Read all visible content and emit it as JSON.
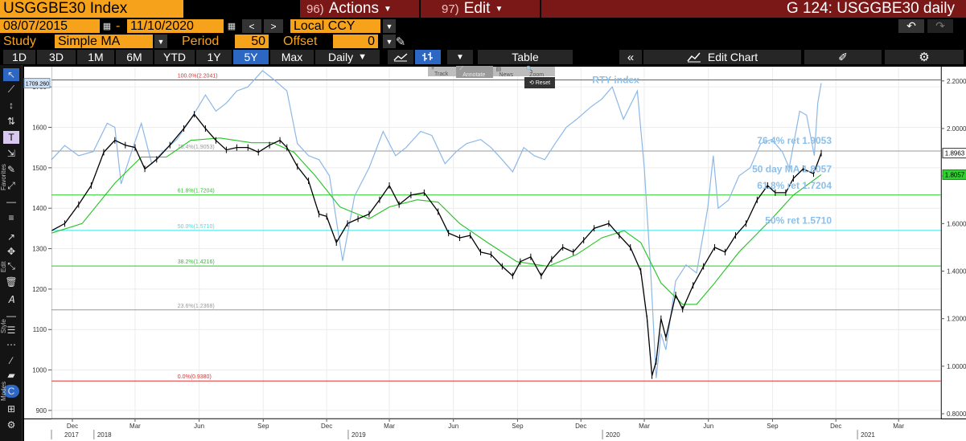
{
  "header": {
    "ticker": "USGGBE30 Index",
    "actions_num": "96)",
    "actions_label": "Actions",
    "edit_num": "97)",
    "edit_label": "Edit",
    "title": "G 124: USGGBE30 daily"
  },
  "range": {
    "start_date": "08/07/2015",
    "separator": "-",
    "end_date": "11/10/2020",
    "currency": "Local CCY"
  },
  "study": {
    "label": "Study",
    "value": "Simple MA",
    "period_label": "Period",
    "period_value": "50",
    "offset_label": "Offset",
    "offset_value": "0"
  },
  "toolbar": {
    "periods": [
      "1D",
      "3D",
      "1M",
      "6M",
      "YTD",
      "1Y",
      "5Y",
      "Max"
    ],
    "selected_period": "5Y",
    "frequency": "Daily",
    "table_label": "Table",
    "edit_chart_label": "Edit Chart"
  },
  "overlay": {
    "items": [
      "Track",
      "Annotate",
      "News",
      "Zoom"
    ],
    "reset": "Reset"
  },
  "sidebar": {
    "favorites": "Favorites",
    "edit": "Edit",
    "style": "Style",
    "modes": "Modes"
  },
  "colors": {
    "price": "#000000",
    "ma": "#22c322",
    "rty": "#8db8e6",
    "fib_top": "#e03030",
    "fib_mid": "#22cc22",
    "fib_50": "#2ee6e6",
    "fib_gray": "#999999",
    "annotation": "#8cc0ea",
    "toolbar_orange": "#f7a21b",
    "toolbar_maroon": "#7a1717"
  },
  "chart_data": {
    "type": "line",
    "left_axis_ticks": [
      "900",
      "1000",
      "1100",
      "1200",
      "1300",
      "1400",
      "1500",
      "1600",
      "1700"
    ],
    "right_axis_ticks": [
      "0.8000",
      "1.0000",
      "1.2000",
      "1.4000",
      "1.6000",
      "1.8000",
      "2.0000",
      "2.2000"
    ],
    "month_ticks": [
      {
        "date": "2017-12-01",
        "label": "Dec"
      },
      {
        "date": "2018-03-01",
        "label": "Mar"
      },
      {
        "date": "2018-06-01",
        "label": "Jun"
      },
      {
        "date": "2018-09-01",
        "label": "Sep"
      },
      {
        "date": "2018-12-01",
        "label": "Dec"
      },
      {
        "date": "2019-03-01",
        "label": "Mar"
      },
      {
        "date": "2019-06-01",
        "label": "Jun"
      },
      {
        "date": "2019-09-01",
        "label": "Sep"
      },
      {
        "date": "2019-12-01",
        "label": "Dec"
      },
      {
        "date": "2020-03-01",
        "label": "Mar"
      },
      {
        "date": "2020-06-01",
        "label": "Jun"
      },
      {
        "date": "2020-09-01",
        "label": "Sep"
      },
      {
        "date": "2020-12-01",
        "label": "Dec"
      },
      {
        "date": "2021-03-01",
        "label": "Mar"
      }
    ],
    "year_ticks": [
      {
        "date": "2017-10-01",
        "label": "2017"
      },
      {
        "date": "2018-01-01",
        "label": "2018"
      },
      {
        "date": "2019-01-01",
        "label": "2019"
      },
      {
        "date": "2020-01-01",
        "label": "2020"
      },
      {
        "date": "2021-01-01",
        "label": "2021"
      }
    ],
    "x_range": [
      "2017-11-01",
      "2021-05-01"
    ],
    "ylim_left": [
      880,
      1750
    ],
    "ylim_right": [
      0.78,
      2.26
    ],
    "fib_levels": [
      {
        "label": "100.0%(2.2041)",
        "value": 2.2041,
        "color": "#e03030"
      },
      {
        "label": "76.4%(1.9053)",
        "value": 1.9053,
        "color": "#999999"
      },
      {
        "label": "61.8%(1.7204)",
        "value": 1.7204,
        "color": "#22cc22"
      },
      {
        "label": "50.0%(1.5710)",
        "value": 1.571,
        "color": "#2ee6e6"
      },
      {
        "label": "38.2%(1.4216)",
        "value": 1.4216,
        "color": "#22cc22"
      },
      {
        "label": "23.6%(1.2368)",
        "value": 1.2368,
        "color": "#999999"
      },
      {
        "label": "0.0%(0.9380)",
        "value": 0.938,
        "color": "#e03030"
      }
    ],
    "annotations": [
      {
        "text": "RTY index",
        "date": "2020-01-20",
        "value": 2.19
      },
      {
        "text": "76.4% ret 1.9053",
        "date": "2020-11-25",
        "value": 1.935
      },
      {
        "text": "50 day MA 1.8057",
        "date": "2020-11-25",
        "value": 1.815
      },
      {
        "text": "61.8% ret 1.7204",
        "date": "2020-11-25",
        "value": 1.747
      },
      {
        "text": "50% ret 1.5710",
        "date": "2020-11-25",
        "value": 1.6
      }
    ],
    "tags": {
      "left_rty": "1709.260",
      "left_rty_value": 1709.26,
      "right_last": "1.8963",
      "right_last_value": 1.8963,
      "right_ma": "1.8057",
      "right_ma_value": 1.8057
    },
    "series": [
      {
        "name": "USGGBE30 Index",
        "axis": "right",
        "points": [
          [
            "2017-11-01",
            1.57
          ],
          [
            "2017-11-20",
            1.6
          ],
          [
            "2017-12-10",
            1.68
          ],
          [
            "2017-12-28",
            1.76
          ],
          [
            "2018-01-15",
            1.9
          ],
          [
            "2018-01-31",
            1.95
          ],
          [
            "2018-02-15",
            1.93
          ],
          [
            "2018-03-01",
            1.92
          ],
          [
            "2018-03-15",
            1.83
          ],
          [
            "2018-04-01",
            1.87
          ],
          [
            "2018-04-20",
            1.93
          ],
          [
            "2018-05-10",
            2.0
          ],
          [
            "2018-05-25",
            2.06
          ],
          [
            "2018-06-10",
            2.0
          ],
          [
            "2018-06-25",
            1.95
          ],
          [
            "2018-07-10",
            1.91
          ],
          [
            "2018-07-25",
            1.92
          ],
          [
            "2018-08-10",
            1.92
          ],
          [
            "2018-08-25",
            1.9
          ],
          [
            "2018-09-10",
            1.93
          ],
          [
            "2018-09-25",
            1.95
          ],
          [
            "2018-10-05",
            1.92
          ],
          [
            "2018-10-20",
            1.84
          ],
          [
            "2018-11-05",
            1.78
          ],
          [
            "2018-11-20",
            1.64
          ],
          [
            "2018-12-01",
            1.63
          ],
          [
            "2018-12-15",
            1.52
          ],
          [
            "2018-12-31",
            1.6
          ],
          [
            "2019-01-15",
            1.62
          ],
          [
            "2019-01-31",
            1.64
          ],
          [
            "2019-02-15",
            1.7
          ],
          [
            "2019-03-01",
            1.76
          ],
          [
            "2019-03-15",
            1.68
          ],
          [
            "2019-04-01",
            1.72
          ],
          [
            "2019-04-20",
            1.73
          ],
          [
            "2019-05-10",
            1.65
          ],
          [
            "2019-05-25",
            1.56
          ],
          [
            "2019-06-10",
            1.54
          ],
          [
            "2019-06-25",
            1.55
          ],
          [
            "2019-07-10",
            1.48
          ],
          [
            "2019-07-25",
            1.47
          ],
          [
            "2019-08-10",
            1.42
          ],
          [
            "2019-08-25",
            1.38
          ],
          [
            "2019-09-05",
            1.44
          ],
          [
            "2019-09-20",
            1.46
          ],
          [
            "2019-10-05",
            1.38
          ],
          [
            "2019-10-20",
            1.45
          ],
          [
            "2019-11-05",
            1.5
          ],
          [
            "2019-11-20",
            1.48
          ],
          [
            "2019-12-05",
            1.53
          ],
          [
            "2019-12-20",
            1.58
          ],
          [
            "2020-01-10",
            1.6
          ],
          [
            "2020-01-25",
            1.55
          ],
          [
            "2020-02-10",
            1.5
          ],
          [
            "2020-02-25",
            1.4
          ],
          [
            "2020-03-05",
            1.2
          ],
          [
            "2020-03-12",
            0.96
          ],
          [
            "2020-03-18",
            1.02
          ],
          [
            "2020-03-25",
            1.2
          ],
          [
            "2020-04-01",
            1.12
          ],
          [
            "2020-04-15",
            1.3
          ],
          [
            "2020-04-25",
            1.24
          ],
          [
            "2020-05-10",
            1.34
          ],
          [
            "2020-05-25",
            1.42
          ],
          [
            "2020-06-10",
            1.5
          ],
          [
            "2020-06-25",
            1.48
          ],
          [
            "2020-07-10",
            1.55
          ],
          [
            "2020-07-25",
            1.6
          ],
          [
            "2020-08-10",
            1.7
          ],
          [
            "2020-08-25",
            1.76
          ],
          [
            "2020-09-05",
            1.73
          ],
          [
            "2020-09-20",
            1.73
          ],
          [
            "2020-10-01",
            1.79
          ],
          [
            "2020-10-15",
            1.83
          ],
          [
            "2020-10-30",
            1.81
          ],
          [
            "2020-11-10",
            1.8963
          ]
        ]
      },
      {
        "name": "50 day MA",
        "axis": "right",
        "points": [
          [
            "2017-11-01",
            1.56
          ],
          [
            "2017-12-15",
            1.6
          ],
          [
            "2018-01-31",
            1.77
          ],
          [
            "2018-03-10",
            1.88
          ],
          [
            "2018-04-15",
            1.88
          ],
          [
            "2018-05-20",
            1.95
          ],
          [
            "2018-07-01",
            1.96
          ],
          [
            "2018-08-15",
            1.94
          ],
          [
            "2018-09-15",
            1.94
          ],
          [
            "2018-10-15",
            1.9
          ],
          [
            "2018-11-15",
            1.8
          ],
          [
            "2018-12-20",
            1.67
          ],
          [
            "2019-01-31",
            1.62
          ],
          [
            "2019-03-01",
            1.67
          ],
          [
            "2019-04-10",
            1.7
          ],
          [
            "2019-05-10",
            1.69
          ],
          [
            "2019-06-10",
            1.6
          ],
          [
            "2019-07-20",
            1.52
          ],
          [
            "2019-08-31",
            1.44
          ],
          [
            "2019-10-15",
            1.42
          ],
          [
            "2019-11-25",
            1.47
          ],
          [
            "2019-12-31",
            1.54
          ],
          [
            "2020-02-01",
            1.57
          ],
          [
            "2020-02-25",
            1.52
          ],
          [
            "2020-03-25",
            1.35
          ],
          [
            "2020-04-25",
            1.26
          ],
          [
            "2020-05-15",
            1.26
          ],
          [
            "2020-06-10",
            1.35
          ],
          [
            "2020-07-15",
            1.48
          ],
          [
            "2020-08-31",
            1.62
          ],
          [
            "2020-10-01",
            1.72
          ],
          [
            "2020-11-10",
            1.8057
          ]
        ]
      },
      {
        "name": "RTY index",
        "axis": "left",
        "points": [
          [
            "2017-11-01",
            1520
          ],
          [
            "2017-11-20",
            1555
          ],
          [
            "2017-12-10",
            1530
          ],
          [
            "2017-12-31",
            1540
          ],
          [
            "2018-01-20",
            1610
          ],
          [
            "2018-01-31",
            1600
          ],
          [
            "2018-02-09",
            1460
          ],
          [
            "2018-02-25",
            1545
          ],
          [
            "2018-03-10",
            1610
          ],
          [
            "2018-03-25",
            1510
          ],
          [
            "2018-04-10",
            1540
          ],
          [
            "2018-04-30",
            1570
          ],
          [
            "2018-05-20",
            1620
          ],
          [
            "2018-06-10",
            1680
          ],
          [
            "2018-06-25",
            1640
          ],
          [
            "2018-07-10",
            1660
          ],
          [
            "2018-07-25",
            1690
          ],
          [
            "2018-08-10",
            1700
          ],
          [
            "2018-08-31",
            1740
          ],
          [
            "2018-09-15",
            1720
          ],
          [
            "2018-10-05",
            1690
          ],
          [
            "2018-10-20",
            1560
          ],
          [
            "2018-11-05",
            1530
          ],
          [
            "2018-11-20",
            1520
          ],
          [
            "2018-12-05",
            1480
          ],
          [
            "2018-12-24",
            1270
          ],
          [
            "2019-01-10",
            1430
          ],
          [
            "2019-01-31",
            1500
          ],
          [
            "2019-02-20",
            1590
          ],
          [
            "2019-03-10",
            1530
          ],
          [
            "2019-03-25",
            1550
          ],
          [
            "2019-04-15",
            1590
          ],
          [
            "2019-05-01",
            1580
          ],
          [
            "2019-05-20",
            1510
          ],
          [
            "2019-06-05",
            1540
          ],
          [
            "2019-06-20",
            1560
          ],
          [
            "2019-07-10",
            1570
          ],
          [
            "2019-07-25",
            1550
          ],
          [
            "2019-08-10",
            1520
          ],
          [
            "2019-08-25",
            1490
          ],
          [
            "2019-09-10",
            1550
          ],
          [
            "2019-09-25",
            1530
          ],
          [
            "2019-10-10",
            1520
          ],
          [
            "2019-10-25",
            1560
          ],
          [
            "2019-11-10",
            1600
          ],
          [
            "2019-11-25",
            1620
          ],
          [
            "2019-12-15",
            1650
          ],
          [
            "2019-12-31",
            1670
          ],
          [
            "2020-01-15",
            1700
          ],
          [
            "2020-01-31",
            1620
          ],
          [
            "2020-02-20",
            1690
          ],
          [
            "2020-03-01",
            1500
          ],
          [
            "2020-03-10",
            1250
          ],
          [
            "2020-03-18",
            980
          ],
          [
            "2020-03-25",
            1090
          ],
          [
            "2020-04-01",
            1050
          ],
          [
            "2020-04-15",
            1220
          ],
          [
            "2020-04-30",
            1260
          ],
          [
            "2020-05-15",
            1240
          ],
          [
            "2020-05-31",
            1400
          ],
          [
            "2020-06-08",
            1530
          ],
          [
            "2020-06-15",
            1400
          ],
          [
            "2020-06-30",
            1420
          ],
          [
            "2020-07-15",
            1480
          ],
          [
            "2020-07-31",
            1500
          ],
          [
            "2020-08-15",
            1560
          ],
          [
            "2020-08-31",
            1570
          ],
          [
            "2020-09-15",
            1540
          ],
          [
            "2020-09-25",
            1500
          ],
          [
            "2020-10-10",
            1640
          ],
          [
            "2020-10-20",
            1630
          ],
          [
            "2020-10-31",
            1530
          ],
          [
            "2020-11-05",
            1660
          ],
          [
            "2020-11-10",
            1709.26
          ]
        ]
      }
    ]
  }
}
